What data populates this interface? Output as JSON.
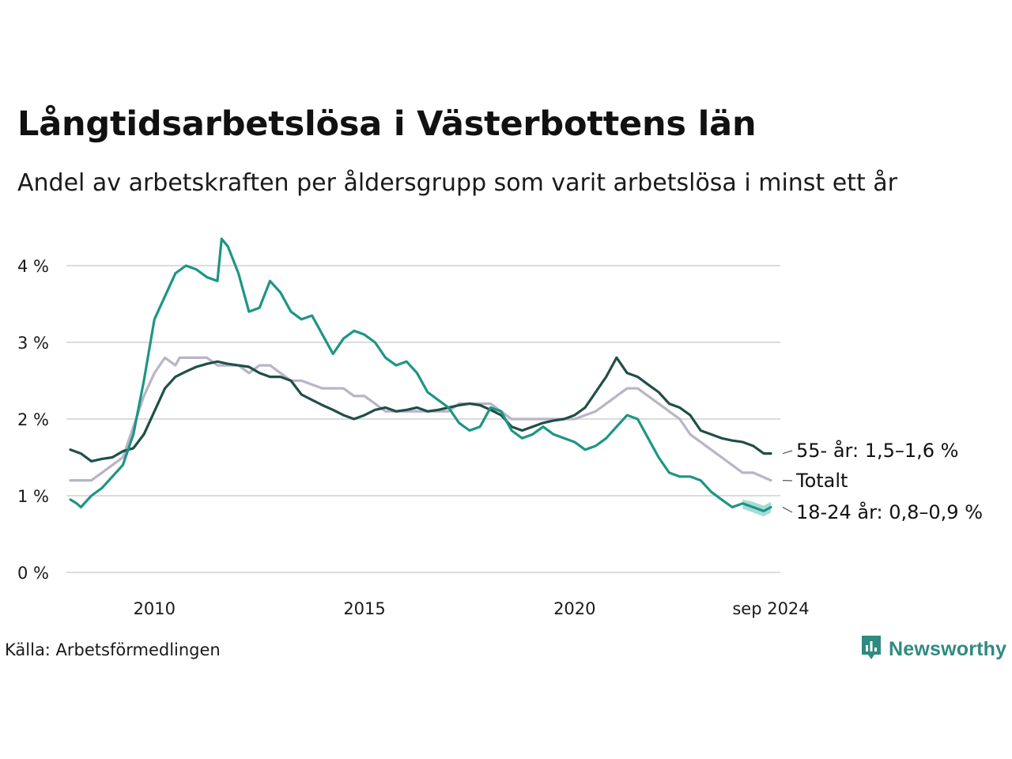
{
  "title": "Långtidsarbetslösa i Västerbottens län",
  "subtitle": "Andel av arbetskraften per åldersgrupp som varit arbetslösa i minst ett år",
  "source": "Källa: Arbetsförmedlingen",
  "brand": {
    "name": "Newsworthy",
    "icon": "newsworthy-logo-icon",
    "color": "#2f8b80"
  },
  "chart_data": {
    "type": "line",
    "x_range": [
      2008.0,
      2024.67
    ],
    "ylim": [
      0,
      4.5
    ],
    "y_ticks": [
      {
        "value": 0,
        "label": "0 %"
      },
      {
        "value": 1,
        "label": "1 %"
      },
      {
        "value": 2,
        "label": "2 %"
      },
      {
        "value": 3,
        "label": "3 %"
      },
      {
        "value": 4,
        "label": "4 %"
      }
    ],
    "x_ticks": [
      {
        "value": 2010,
        "label": "2010"
      },
      {
        "value": 2015,
        "label": "2015"
      },
      {
        "value": 2020,
        "label": "2020"
      },
      {
        "value": 2024.67,
        "label": "sep 2024"
      }
    ],
    "grid": true,
    "series": [
      {
        "name": "Totalt",
        "end_label": "Totalt",
        "color": "#b9b4c6",
        "x": [
          2008.0,
          2008.5,
          2008.75,
          2009.0,
          2009.25,
          2009.5,
          2009.75,
          2010.0,
          2010.25,
          2010.5,
          2010.6,
          2010.75,
          2011.0,
          2011.25,
          2011.5,
          2011.75,
          2012.0,
          2012.25,
          2012.5,
          2012.75,
          2013.0,
          2013.25,
          2013.5,
          2014.0,
          2014.5,
          2014.75,
          2015.0,
          2015.25,
          2015.5,
          2016.0,
          2016.5,
          2017.0,
          2017.25,
          2017.5,
          2018.0,
          2018.25,
          2018.5,
          2019.0,
          2019.25,
          2019.5,
          2020.0,
          2020.5,
          2020.75,
          2021.0,
          2021.25,
          2021.5,
          2021.75,
          2022.0,
          2022.25,
          2022.5,
          2022.75,
          2023.0,
          2023.25,
          2023.5,
          2024.0,
          2024.25,
          2024.67
        ],
        "y": [
          1.2,
          1.2,
          1.3,
          1.4,
          1.5,
          1.9,
          2.3,
          2.6,
          2.8,
          2.7,
          2.8,
          2.8,
          2.8,
          2.8,
          2.7,
          2.7,
          2.7,
          2.6,
          2.7,
          2.7,
          2.6,
          2.5,
          2.5,
          2.4,
          2.4,
          2.3,
          2.3,
          2.2,
          2.1,
          2.1,
          2.1,
          2.1,
          2.2,
          2.2,
          2.2,
          2.1,
          2.0,
          2.0,
          2.0,
          2.0,
          2.0,
          2.1,
          2.2,
          2.3,
          2.4,
          2.4,
          2.3,
          2.2,
          2.1,
          2.0,
          1.8,
          1.7,
          1.6,
          1.5,
          1.3,
          1.3,
          1.2
        ]
      },
      {
        "name": "55- år",
        "end_label": "55- år: 1,5–1,6 %",
        "color": "#1f4f49",
        "x": [
          2008.0,
          2008.25,
          2008.5,
          2008.75,
          2009.0,
          2009.25,
          2009.5,
          2009.75,
          2010.0,
          2010.25,
          2010.5,
          2010.75,
          2011.0,
          2011.25,
          2011.5,
          2011.75,
          2012.0,
          2012.25,
          2012.5,
          2012.75,
          2013.0,
          2013.25,
          2013.5,
          2013.75,
          2014.0,
          2014.25,
          2014.5,
          2014.75,
          2015.0,
          2015.25,
          2015.5,
          2015.75,
          2016.0,
          2016.25,
          2016.5,
          2016.75,
          2017.0,
          2017.25,
          2017.5,
          2017.75,
          2018.0,
          2018.25,
          2018.5,
          2018.75,
          2019.0,
          2019.25,
          2019.5,
          2019.75,
          2020.0,
          2020.25,
          2020.5,
          2020.75,
          2021.0,
          2021.25,
          2021.5,
          2021.75,
          2022.0,
          2022.25,
          2022.5,
          2022.75,
          2023.0,
          2023.25,
          2023.5,
          2023.75,
          2024.0,
          2024.25,
          2024.5,
          2024.67
        ],
        "y": [
          1.6,
          1.55,
          1.45,
          1.48,
          1.5,
          1.58,
          1.62,
          1.8,
          2.1,
          2.4,
          2.55,
          2.62,
          2.68,
          2.72,
          2.75,
          2.72,
          2.7,
          2.68,
          2.6,
          2.55,
          2.55,
          2.5,
          2.32,
          2.25,
          2.18,
          2.12,
          2.05,
          2.0,
          2.05,
          2.12,
          2.15,
          2.1,
          2.12,
          2.15,
          2.1,
          2.12,
          2.15,
          2.18,
          2.2,
          2.18,
          2.12,
          2.05,
          1.9,
          1.85,
          1.9,
          1.95,
          1.98,
          2.0,
          2.05,
          2.15,
          2.35,
          2.55,
          2.8,
          2.6,
          2.55,
          2.45,
          2.35,
          2.2,
          2.15,
          2.05,
          1.85,
          1.8,
          1.75,
          1.72,
          1.7,
          1.65,
          1.55,
          1.55
        ]
      },
      {
        "name": "18-24 år",
        "end_label": "18-24 år: 0,8–0,9 %",
        "color": "#1e9585",
        "band_color": "#8fd3ca",
        "x": [
          2008.0,
          2008.15,
          2008.25,
          2008.5,
          2008.75,
          2009.0,
          2009.25,
          2009.5,
          2009.75,
          2010.0,
          2010.25,
          2010.5,
          2010.75,
          2011.0,
          2011.25,
          2011.5,
          2011.6,
          2011.75,
          2012.0,
          2012.25,
          2012.5,
          2012.75,
          2013.0,
          2013.25,
          2013.5,
          2013.75,
          2014.0,
          2014.25,
          2014.5,
          2014.75,
          2015.0,
          2015.25,
          2015.5,
          2015.75,
          2016.0,
          2016.25,
          2016.5,
          2016.75,
          2017.0,
          2017.25,
          2017.5,
          2017.75,
          2018.0,
          2018.25,
          2018.5,
          2018.75,
          2019.0,
          2019.25,
          2019.5,
          2019.75,
          2020.0,
          2020.25,
          2020.5,
          2020.75,
          2021.0,
          2021.25,
          2021.5,
          2021.75,
          2022.0,
          2022.25,
          2022.5,
          2022.75,
          2023.0,
          2023.25,
          2023.5,
          2023.75,
          2024.0,
          2024.25,
          2024.5,
          2024.67
        ],
        "y": [
          0.95,
          0.9,
          0.85,
          1.0,
          1.1,
          1.25,
          1.4,
          1.8,
          2.5,
          3.3,
          3.6,
          3.9,
          4.0,
          3.95,
          3.85,
          3.8,
          4.35,
          4.25,
          3.9,
          3.4,
          3.45,
          3.8,
          3.65,
          3.4,
          3.3,
          3.35,
          3.1,
          2.85,
          3.05,
          3.15,
          3.1,
          3.0,
          2.8,
          2.7,
          2.75,
          2.6,
          2.35,
          2.25,
          2.15,
          1.95,
          1.85,
          1.9,
          2.15,
          2.1,
          1.85,
          1.75,
          1.8,
          1.9,
          1.8,
          1.75,
          1.7,
          1.6,
          1.65,
          1.75,
          1.9,
          2.05,
          2.0,
          1.75,
          1.5,
          1.3,
          1.25,
          1.25,
          1.2,
          1.05,
          0.95,
          0.85,
          0.9,
          0.85,
          0.8,
          0.85
        ],
        "band": {
          "x_from": 2023.83,
          "low": 0.72,
          "high": 0.95
        }
      }
    ]
  }
}
